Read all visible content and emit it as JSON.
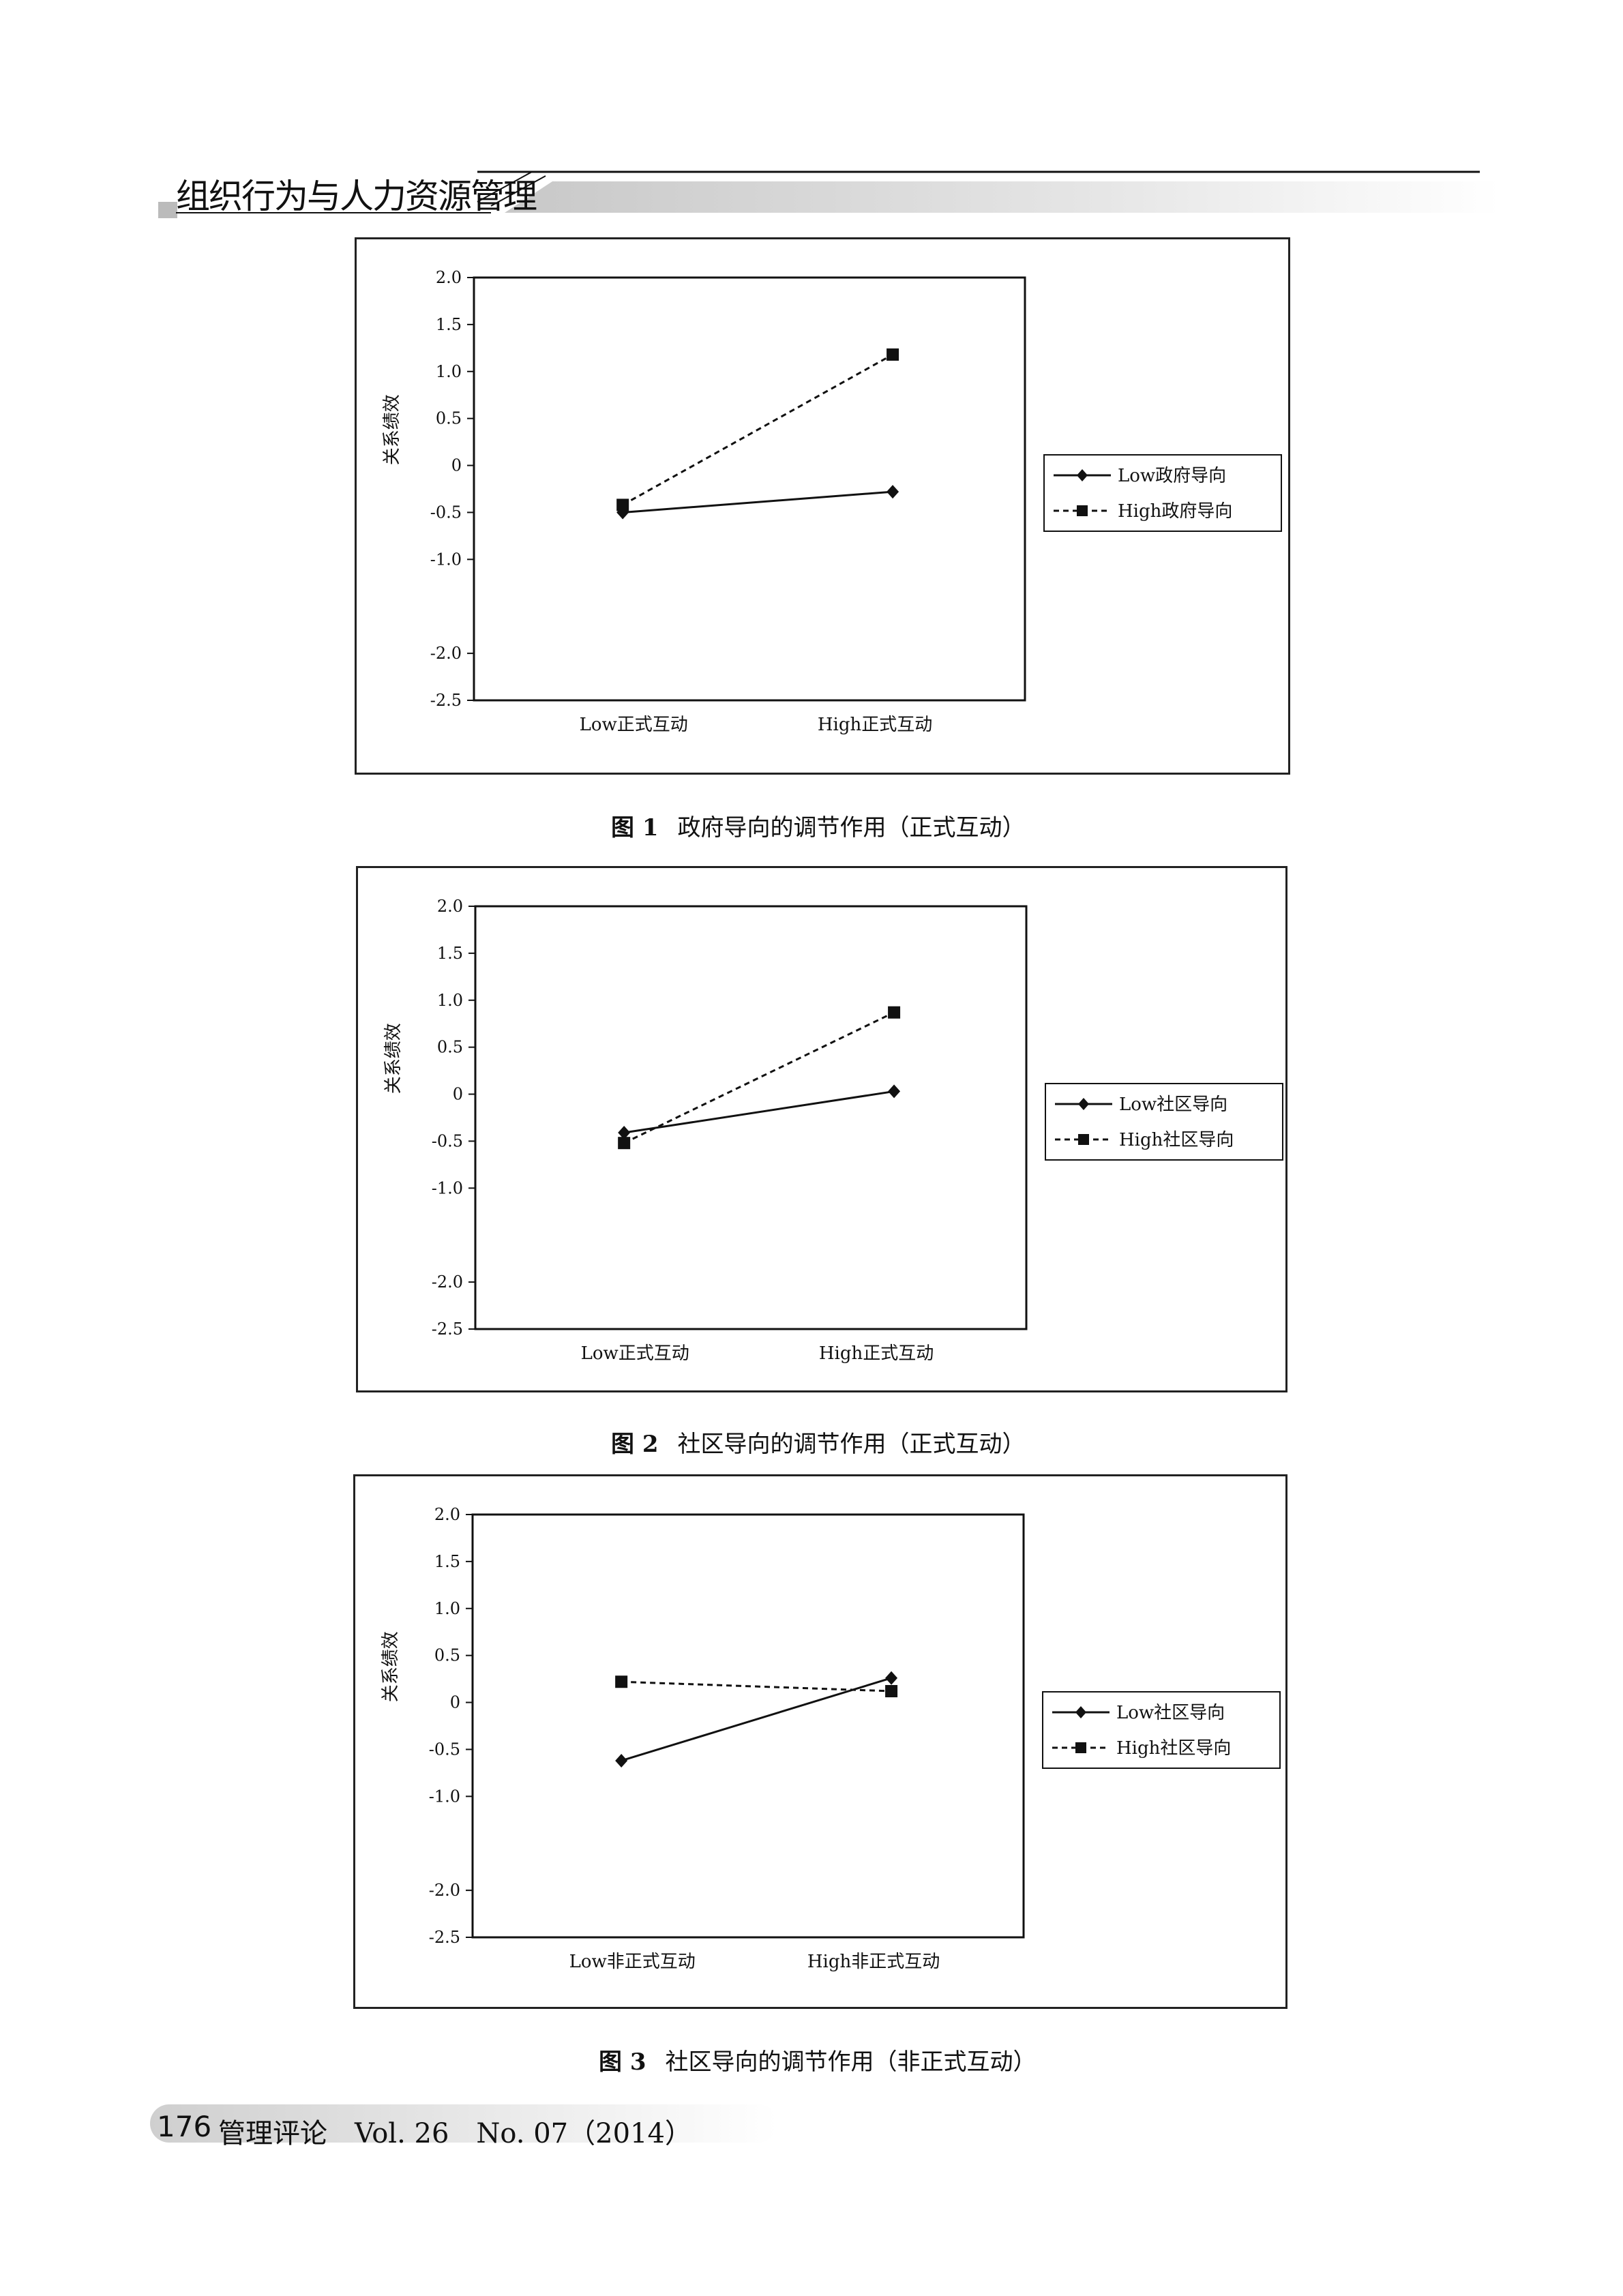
{
  "header": {
    "section_title": "组织行为与人力资源管理"
  },
  "figures": [
    {
      "caption_no": "图 1",
      "caption_text": "政府导向的调节作用（正式互动）"
    },
    {
      "caption_no": "图 2",
      "caption_text": "社区导向的调节作用（正式互动）"
    },
    {
      "caption_no": "图 3",
      "caption_text": "社区导向的调节作用（非正式互动）"
    }
  ],
  "chart_data": [
    {
      "type": "line",
      "ylabel": "关系绩效",
      "categories": [
        "Low正式互动",
        "High正式互动"
      ],
      "ylim": [
        -2.5,
        2.0
      ],
      "yticks": [
        "2.0",
        "1.5",
        "1.0",
        "0.5",
        "0",
        "-0.5",
        "-1.0",
        "-2.0",
        "-2.5"
      ],
      "legend_position": "right",
      "series": [
        {
          "name": "Low政府导向",
          "style": "solid",
          "marker": "diamond",
          "values": [
            -0.5,
            -0.28
          ]
        },
        {
          "name": "High政府导向",
          "style": "dashed",
          "marker": "square",
          "values": [
            -0.42,
            1.18
          ]
        }
      ]
    },
    {
      "type": "line",
      "ylabel": "关系绩效",
      "categories": [
        "Low正式互动",
        "High正式互动"
      ],
      "ylim": [
        -2.5,
        2.0
      ],
      "yticks": [
        "2.0",
        "1.5",
        "1.0",
        "0.5",
        "0",
        "-0.5",
        "-1.0",
        "-2.0",
        "-2.5"
      ],
      "legend_position": "right",
      "series": [
        {
          "name": "Low社区导向",
          "style": "solid",
          "marker": "diamond",
          "values": [
            -0.41,
            0.03
          ]
        },
        {
          "name": "High社区导向",
          "style": "dashed",
          "marker": "square",
          "values": [
            -0.52,
            0.87
          ]
        }
      ]
    },
    {
      "type": "line",
      "ylabel": "关系绩效",
      "categories": [
        "Low非正式互动",
        "High非正式互动"
      ],
      "ylim": [
        -2.5,
        2.0
      ],
      "yticks": [
        "2.0",
        "1.5",
        "1.0",
        "0.5",
        "0",
        "-0.5",
        "-1.0",
        "-2.0",
        "-2.5"
      ],
      "legend_position": "right",
      "series": [
        {
          "name": "Low社区导向",
          "style": "solid",
          "marker": "diamond",
          "values": [
            -0.62,
            0.26
          ]
        },
        {
          "name": "High社区导向",
          "style": "dashed",
          "marker": "square",
          "values": [
            0.22,
            0.12
          ]
        }
      ]
    }
  ],
  "footer": {
    "page_number": "176",
    "journal": "管理评论",
    "volume": "Vol. 26",
    "issue": "No. 07（2014）"
  }
}
